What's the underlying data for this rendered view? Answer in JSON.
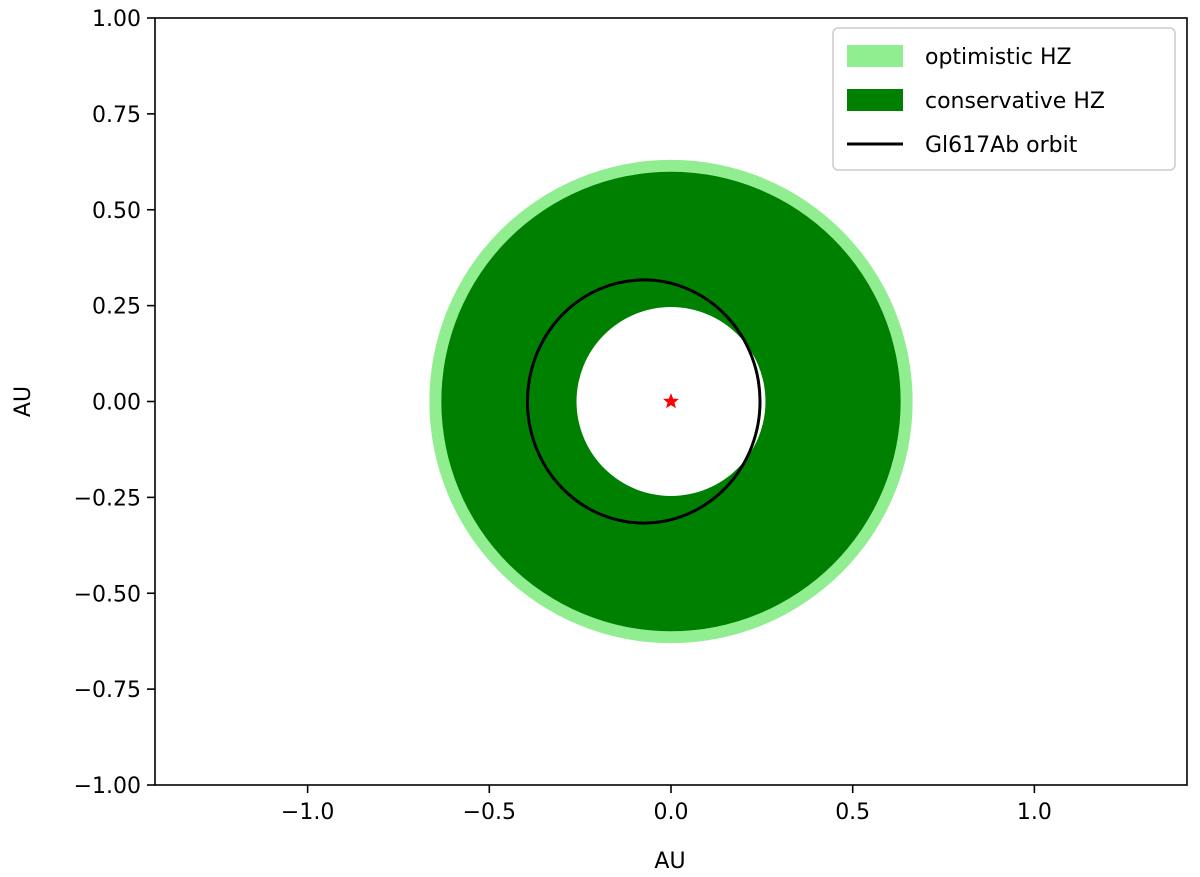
{
  "chart_data": {
    "type": "area",
    "title": "",
    "xlabel": "AU",
    "ylabel": "AU",
    "xlim": [
      -1.42,
      1.42
    ],
    "ylim": [
      -1.0,
      1.0
    ],
    "equal_aspect": true,
    "x_ticks": [
      -1.0,
      -0.5,
      0.0,
      0.5,
      1.0
    ],
    "x_tick_labels": [
      "−1.0",
      "−0.5",
      "0.0",
      "0.5",
      "1.0"
    ],
    "y_ticks": [
      1.0,
      0.75,
      0.5,
      0.25,
      0.0,
      -0.25,
      -0.5,
      -0.75,
      -1.0
    ],
    "y_tick_labels": [
      "1.00",
      "0.75",
      "0.50",
      "0.25",
      "0.00",
      "−0.25",
      "−0.50",
      "−0.75",
      "−1.00"
    ],
    "grid": false,
    "legend_position": "top-right",
    "series": [
      {
        "name": "optimistic HZ",
        "kind": "annulus",
        "inner_radius": 0.33,
        "outer_radius": 0.665,
        "color": "#90ee90"
      },
      {
        "name": "conservative HZ",
        "kind": "annulus",
        "inner_radius": 0.26,
        "outer_radius": 0.632,
        "color": "#008000"
      },
      {
        "name": "Gl617Ab orbit",
        "kind": "ellipse",
        "center": [
          -0.075,
          0.0
        ],
        "semi_major_axis": 0.32,
        "semi_minor_axis": 0.317,
        "color": "#000000"
      }
    ],
    "star": {
      "x": 0.0,
      "y": 0.0,
      "marker": "*",
      "color": "#ff0000"
    }
  }
}
